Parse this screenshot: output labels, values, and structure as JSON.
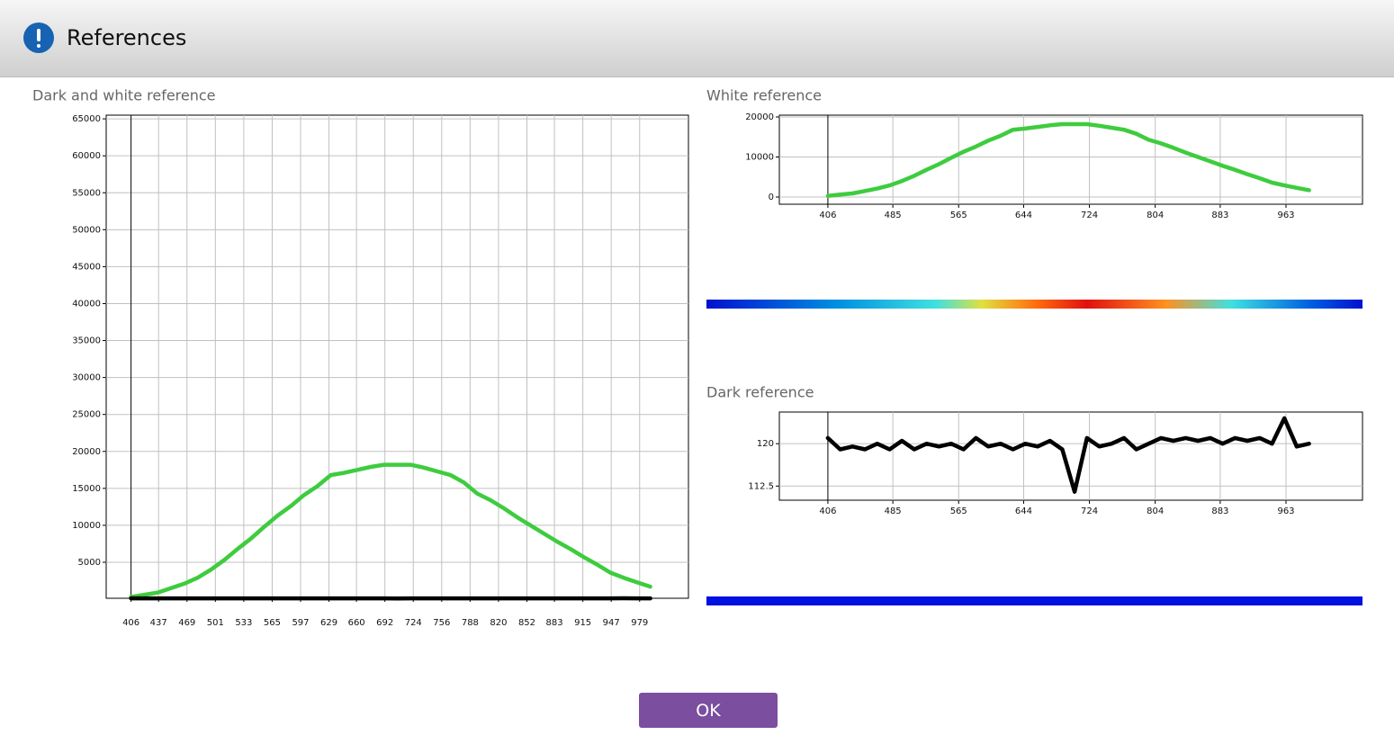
{
  "header": {
    "title": "References"
  },
  "chart_data": [
    {
      "type": "line",
      "title": "Dark and white reference",
      "x": [
        406,
        421,
        436,
        451,
        466,
        481,
        496,
        511,
        526,
        541,
        556,
        571,
        586,
        601,
        616,
        631,
        646,
        661,
        676,
        691,
        706,
        721,
        736,
        751,
        766,
        781,
        796,
        811,
        826,
        841,
        856,
        871,
        886,
        901,
        916,
        931,
        946,
        961,
        976,
        991
      ],
      "series": [
        {
          "name": "White reference",
          "color": "#3ecc3e",
          "values": [
            300,
            600,
            900,
            1500,
            2100,
            2900,
            4000,
            5300,
            6800,
            8200,
            9800,
            11300,
            12600,
            14100,
            15300,
            16800,
            17100,
            17500,
            17900,
            18200,
            18200,
            18200,
            17800,
            17300,
            16800,
            15800,
            14300,
            13400,
            12300,
            11100,
            10000,
            8900,
            7800,
            6800,
            5700,
            4700,
            3600,
            2900,
            2300,
            1700
          ]
        },
        {
          "name": "Dark reference",
          "color": "#000000",
          "values": [
            121,
            119,
            119.5,
            119,
            120,
            119,
            120.5,
            119,
            120,
            119.5,
            120,
            119,
            121,
            119.5,
            120,
            119,
            120,
            119.5,
            120.5,
            119,
            111.5,
            121,
            119.5,
            120,
            121,
            119,
            120,
            121,
            120.5,
            121,
            120.5,
            121,
            120,
            121,
            120.5,
            121,
            120,
            124.5,
            119.5,
            120
          ]
        }
      ],
      "xlim": [
        378,
        1034
      ],
      "ylim": [
        130,
        65500
      ],
      "xticks": [
        406,
        437,
        469,
        501,
        533,
        565,
        597,
        629,
        660,
        692,
        724,
        756,
        788,
        820,
        852,
        883,
        915,
        947,
        979
      ],
      "yticks": [
        5000,
        10000,
        15000,
        20000,
        25000,
        30000,
        35000,
        40000,
        45000,
        50000,
        55000,
        60000,
        65000
      ],
      "grid": true
    },
    {
      "type": "line",
      "title": "White reference",
      "x": [
        406,
        421,
        436,
        451,
        466,
        481,
        496,
        511,
        526,
        541,
        556,
        571,
        586,
        601,
        616,
        631,
        646,
        661,
        676,
        691,
        706,
        721,
        736,
        751,
        766,
        781,
        796,
        811,
        826,
        841,
        856,
        871,
        886,
        901,
        916,
        931,
        946,
        961,
        976,
        991
      ],
      "series": [
        {
          "name": "White reference",
          "color": "#3ecc3e",
          "values": [
            300,
            600,
            900,
            1500,
            2100,
            2900,
            4000,
            5300,
            6800,
            8200,
            9800,
            11300,
            12600,
            14100,
            15300,
            16800,
            17100,
            17500,
            17900,
            18200,
            18200,
            18200,
            17800,
            17300,
            16800,
            15800,
            14300,
            13400,
            12300,
            11100,
            10000,
            8900,
            7800,
            6800,
            5700,
            4700,
            3600,
            2900,
            2300,
            1700
          ]
        }
      ],
      "xlim": [
        347,
        1056
      ],
      "ylim": [
        -1800,
        20450
      ],
      "xticks": [
        406,
        485,
        565,
        644,
        724,
        804,
        883,
        963
      ],
      "yticks": [
        0,
        10000,
        20000
      ],
      "grid": true
    },
    {
      "type": "line",
      "title": "Dark reference",
      "x": [
        406,
        421,
        436,
        451,
        466,
        481,
        496,
        511,
        526,
        541,
        556,
        571,
        586,
        601,
        616,
        631,
        646,
        661,
        676,
        691,
        706,
        721,
        736,
        751,
        766,
        781,
        796,
        811,
        826,
        841,
        856,
        871,
        886,
        901,
        916,
        931,
        946,
        961,
        976,
        991
      ],
      "series": [
        {
          "name": "Dark reference",
          "color": "#000000",
          "values": [
            121,
            119,
            119.5,
            119,
            120,
            119,
            120.5,
            119,
            120,
            119.5,
            120,
            119,
            121,
            119.5,
            120,
            119,
            120,
            119.5,
            120.5,
            119,
            111.5,
            121,
            119.5,
            120,
            121,
            119,
            120,
            121,
            120.5,
            121,
            120.5,
            121,
            120,
            121,
            120.5,
            121,
            120,
            124.5,
            119.5,
            120
          ]
        }
      ],
      "xlim": [
        347,
        1056
      ],
      "ylim": [
        110,
        125.6
      ],
      "xticks": [
        406,
        485,
        565,
        644,
        724,
        804,
        883,
        963
      ],
      "yticks": [
        112.5,
        120
      ],
      "grid": true
    }
  ],
  "button": {
    "label": "OK"
  }
}
